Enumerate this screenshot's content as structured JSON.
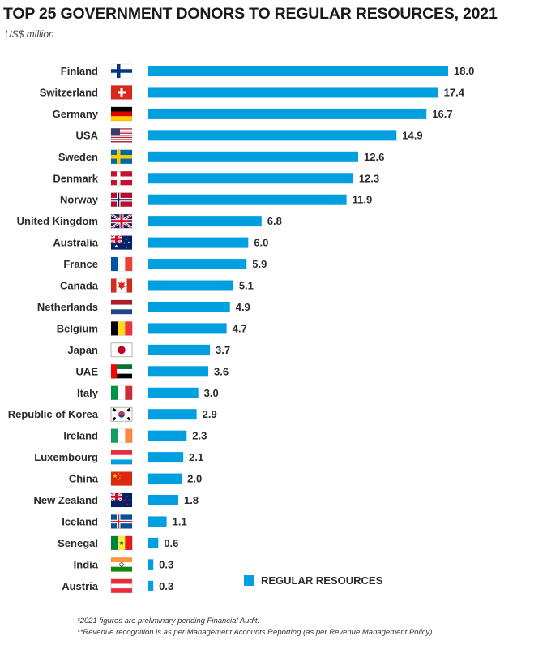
{
  "title": "TOP 25 GOVERNMENT DONORS TO REGULAR RESOURCES, 2021",
  "subtitle": "US$ million",
  "footnotes": [
    "*2021 figures are preliminary pending Financial Audit.",
    "**Revenue recognition is as per Management Accounts Reporting (as per Revenue Management Policy)."
  ],
  "colors": {
    "bar": "#00a0e0"
  },
  "chart_data": {
    "type": "bar",
    "orientation": "horizontal",
    "title": "TOP 25 GOVERNMENT DONORS TO REGULAR RESOURCES, 2021",
    "subtitle": "US$ million",
    "categories": [
      "Finland",
      "Switzerland",
      "Germany",
      "USA",
      "Sweden",
      "Denmark",
      "Norway",
      "United Kingdom",
      "Australia",
      "France",
      "Canada",
      "Netherlands",
      "Belgium",
      "Japan",
      "UAE",
      "Italy",
      "Republic of Korea",
      "Ireland",
      "Luxembourg",
      "China",
      "New Zealand",
      "Iceland",
      "Senegal",
      "India",
      "Austria"
    ],
    "flags": [
      "finland-flag-icon",
      "switzerland-flag-icon",
      "germany-flag-icon",
      "usa-flag-icon",
      "sweden-flag-icon",
      "denmark-flag-icon",
      "norway-flag-icon",
      "uk-flag-icon",
      "australia-flag-icon",
      "france-flag-icon",
      "canada-flag-icon",
      "netherlands-flag-icon",
      "belgium-flag-icon",
      "japan-flag-icon",
      "uae-flag-icon",
      "italy-flag-icon",
      "korea-flag-icon",
      "ireland-flag-icon",
      "luxembourg-flag-icon",
      "china-flag-icon",
      "new-zealand-flag-icon",
      "iceland-flag-icon",
      "senegal-flag-icon",
      "india-flag-icon",
      "austria-flag-icon"
    ],
    "series": [
      {
        "name": "REGULAR RESOURCES",
        "values": [
          18.0,
          17.4,
          16.7,
          14.9,
          12.6,
          12.3,
          11.9,
          6.8,
          6.0,
          5.9,
          5.1,
          4.9,
          4.7,
          3.7,
          3.6,
          3.0,
          2.9,
          2.3,
          2.1,
          2.0,
          1.8,
          1.1,
          0.6,
          0.3,
          0.3
        ],
        "labels": [
          "18.0",
          "17.4",
          "16.7",
          "14.9",
          "12.6",
          "12.3",
          "11.9",
          "6.8",
          "6.0",
          "5.9",
          "5.1",
          "4.9",
          "4.7",
          "3.7",
          "3.6",
          "3.0",
          "2.9",
          "2.3",
          "2.1",
          "2.0",
          "1.8",
          "1.1",
          "0.6",
          "0.3",
          "0.3"
        ]
      }
    ],
    "xlim": [
      0,
      18.0
    ],
    "grid": false,
    "legend": "bottom-right"
  }
}
